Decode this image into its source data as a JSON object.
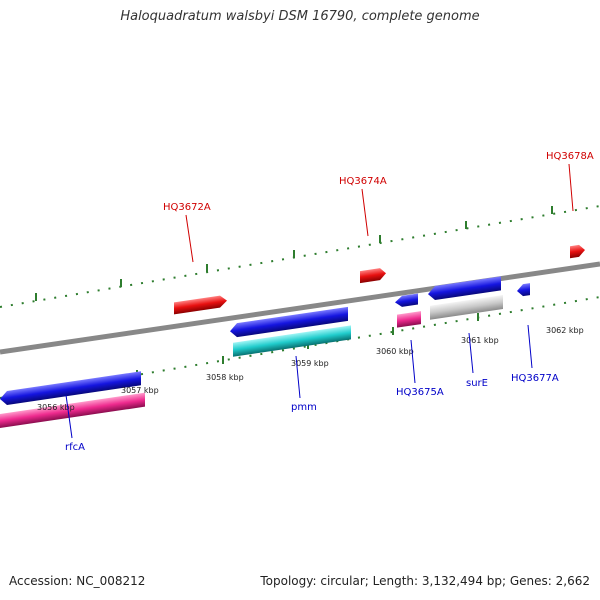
{
  "header": {
    "title": "Haloquadratum walsbyi DSM 16790, complete genome"
  },
  "footer": {
    "accession": "Accession: NC_008212",
    "summary": "Topology: circular; Length: 3,132,494 bp; Genes: 2,662"
  },
  "colors": {
    "backbone": "#888888",
    "ruler_ticks": "#2e7d2e",
    "forward_gene": "#1515e0",
    "reverse_gene": "#e81010",
    "rna_or_pseudo": "#ee2a8e",
    "cds_cyan": "#20cccc",
    "cds_grey": "#c8c8c8",
    "upper_label": "#d00000",
    "lower_label": "#0000c8"
  },
  "ruler": {
    "tick_labels": [
      "3056 kbp",
      "3057 kbp",
      "3058 kbp",
      "3059 kbp",
      "3060 kbp",
      "3061 kbp",
      "3062 kbp"
    ]
  },
  "genes": {
    "upper_labels": [
      "HQ3672A",
      "HQ3674A",
      "HQ3678A"
    ],
    "lower_labels": [
      "rfcA",
      "pmm",
      "HQ3675A",
      "surE",
      "HQ3677A"
    ]
  }
}
